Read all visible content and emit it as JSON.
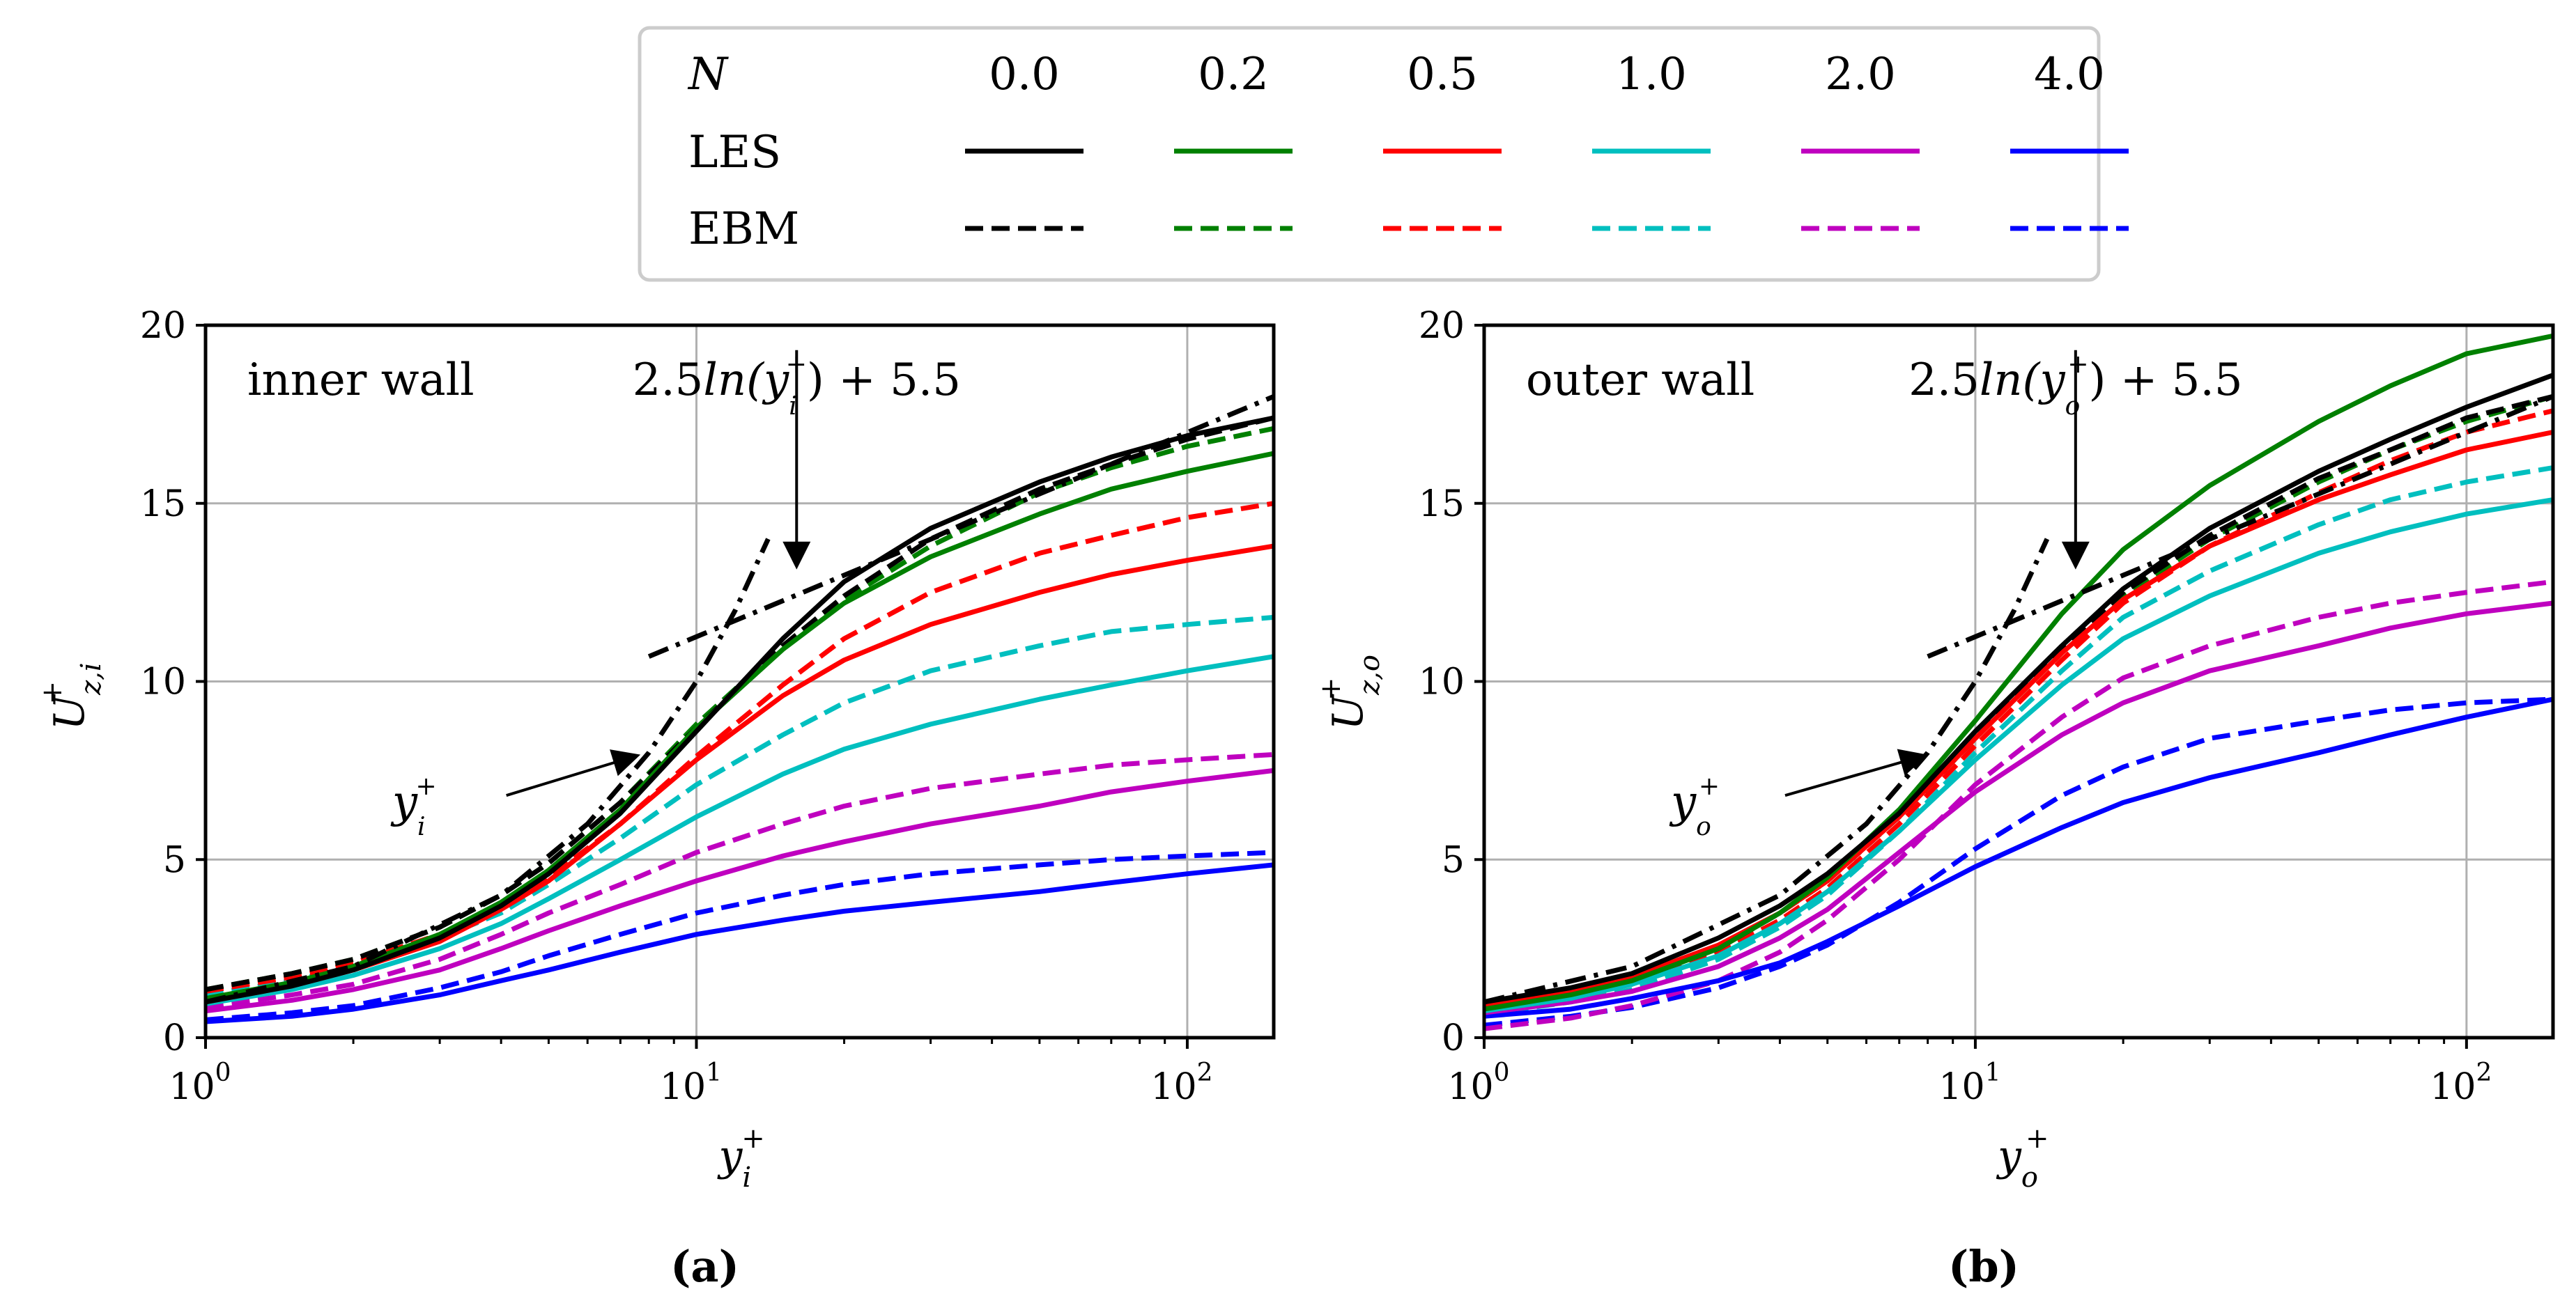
{
  "legend": {
    "param_label": "N",
    "les_label": "LES",
    "ebm_label": "EBM",
    "entries": [
      {
        "n": "0.0",
        "color": "#000000"
      },
      {
        "n": "0.2",
        "color": "#008000"
      },
      {
        "n": "0.5",
        "color": "#ff0000"
      },
      {
        "n": "1.0",
        "color": "#00bfbf"
      },
      {
        "n": "2.0",
        "color": "#bf00bf"
      },
      {
        "n": "4.0",
        "color": "#0000ff"
      }
    ]
  },
  "chart_data": [
    {
      "type": "line",
      "panel_label": "(a)",
      "annotation": "inner wall",
      "log_law_text": "2.5ln(y_i^+) + 5.5",
      "log_law_label": {
        "main": "2.5",
        "ln": "ln",
        "open": "(y",
        "sub": "i",
        "close": ") + 5.5"
      },
      "viscous_label": {
        "base": "y",
        "sub": "i"
      },
      "xlabel": {
        "base": "y",
        "sub": "i"
      },
      "ylabel": {
        "base": "U",
        "sub": "z,i"
      },
      "xscale": "log",
      "xlim": [
        1,
        150
      ],
      "ylim": [
        0,
        20
      ],
      "grid": true,
      "x_ticks": [
        {
          "base": "10",
          "exp": "0",
          "value": 1
        },
        {
          "base": "10",
          "exp": "1",
          "value": 10
        },
        {
          "base": "10",
          "exp": "2",
          "value": 100
        }
      ],
      "y_ticks": [
        "0",
        "5",
        "10",
        "15",
        "20"
      ],
      "x": [
        1,
        1.5,
        2,
        3,
        4,
        5,
        7,
        10,
        15,
        20,
        30,
        50,
        70,
        100,
        150
      ],
      "series": [
        {
          "name": "LES N=0.0",
          "style": "solid",
          "color": "#000000",
          "values": [
            1.0,
            1.45,
            1.9,
            2.8,
            3.7,
            4.6,
            6.3,
            8.6,
            11.2,
            12.8,
            14.3,
            15.6,
            16.3,
            16.9,
            17.4
          ]
        },
        {
          "name": "LES N=0.2",
          "style": "solid",
          "color": "#008000",
          "values": [
            1.1,
            1.55,
            2.0,
            2.9,
            3.8,
            4.7,
            6.4,
            8.7,
            10.9,
            12.2,
            13.5,
            14.7,
            15.4,
            15.9,
            16.4
          ]
        },
        {
          "name": "LES N=0.5",
          "style": "solid",
          "color": "#ff0000",
          "values": [
            1.0,
            1.45,
            1.9,
            2.7,
            3.6,
            4.4,
            6.0,
            7.8,
            9.6,
            10.6,
            11.6,
            12.5,
            13.0,
            13.4,
            13.8
          ]
        },
        {
          "name": "LES N=1.0",
          "style": "solid",
          "color": "#00bfbf",
          "values": [
            0.95,
            1.35,
            1.75,
            2.5,
            3.2,
            3.9,
            5.0,
            6.2,
            7.4,
            8.1,
            8.8,
            9.5,
            9.9,
            10.3,
            10.7
          ]
        },
        {
          "name": "LES N=2.0",
          "style": "solid",
          "color": "#bf00bf",
          "values": [
            0.75,
            1.05,
            1.35,
            1.9,
            2.5,
            3.0,
            3.7,
            4.4,
            5.1,
            5.5,
            6.0,
            6.5,
            6.9,
            7.2,
            7.5
          ]
        },
        {
          "name": "LES N=4.0",
          "style": "solid",
          "color": "#0000ff",
          "values": [
            0.45,
            0.6,
            0.8,
            1.2,
            1.6,
            1.9,
            2.4,
            2.9,
            3.3,
            3.55,
            3.8,
            4.1,
            4.35,
            4.6,
            4.85
          ]
        },
        {
          "name": "EBM N=0.0",
          "style": "dashed",
          "color": "#000000",
          "values": [
            1.35,
            1.8,
            2.2,
            3.1,
            4.0,
            4.9,
            6.6,
            8.7,
            11.0,
            12.4,
            14.0,
            15.4,
            16.1,
            16.8,
            17.4
          ]
        },
        {
          "name": "EBM N=0.2",
          "style": "dashed",
          "color": "#008000",
          "values": [
            1.35,
            1.8,
            2.2,
            3.1,
            4.0,
            4.9,
            6.6,
            8.8,
            11.0,
            12.3,
            13.8,
            15.3,
            16.0,
            16.6,
            17.1
          ]
        },
        {
          "name": "EBM N=0.5",
          "style": "dashed",
          "color": "#ff0000",
          "values": [
            1.3,
            1.7,
            2.1,
            2.9,
            3.7,
            4.5,
            6.0,
            7.9,
            9.9,
            11.2,
            12.5,
            13.6,
            14.1,
            14.6,
            15.0
          ]
        },
        {
          "name": "EBM N=1.0",
          "style": "dashed",
          "color": "#00bfbf",
          "values": [
            1.2,
            1.6,
            2.0,
            2.8,
            3.5,
            4.3,
            5.6,
            7.1,
            8.5,
            9.4,
            10.3,
            11.0,
            11.4,
            11.6,
            11.8
          ]
        },
        {
          "name": "EBM N=2.0",
          "style": "dashed",
          "color": "#bf00bf",
          "values": [
            0.85,
            1.2,
            1.5,
            2.2,
            2.9,
            3.5,
            4.3,
            5.2,
            6.0,
            6.5,
            7.0,
            7.4,
            7.65,
            7.8,
            7.95
          ]
        },
        {
          "name": "EBM N=4.0",
          "style": "dashed",
          "color": "#0000ff",
          "values": [
            0.5,
            0.7,
            0.9,
            1.4,
            1.85,
            2.3,
            2.9,
            3.5,
            4.0,
            4.3,
            4.6,
            4.85,
            5.0,
            5.1,
            5.2
          ]
        }
      ],
      "reference_lines": [
        {
          "name": "viscous sublayer U+=y+",
          "style": "dashdot",
          "x": [
            1,
            2,
            4,
            6,
            8,
            10,
            12,
            14
          ],
          "values": [
            1,
            2,
            4,
            6,
            8,
            10,
            12,
            14
          ]
        },
        {
          "name": "log law 2.5ln(y+)+5.5",
          "style": "dashdot",
          "x": [
            8,
            150
          ],
          "values": [
            10.7,
            18.0
          ]
        }
      ],
      "arrows": [
        {
          "label": "log law",
          "from": [
            16,
            19.3
          ],
          "to": [
            16,
            13.3
          ]
        },
        {
          "label": "viscous",
          "from": [
            4.1,
            6.8
          ],
          "to": [
            7.5,
            7.9
          ]
        }
      ]
    },
    {
      "type": "line",
      "panel_label": "(b)",
      "annotation": "outer wall",
      "log_law_text": "2.5ln(y_o^+) + 5.5",
      "log_law_label": {
        "main": "2.5",
        "ln": "ln",
        "open": "(y",
        "sub": "o",
        "close": ") + 5.5"
      },
      "viscous_label": {
        "base": "y",
        "sub": "o"
      },
      "xlabel": {
        "base": "y",
        "sub": "o"
      },
      "ylabel": {
        "base": "U",
        "sub": "z,o"
      },
      "xscale": "log",
      "xlim": [
        1,
        150
      ],
      "ylim": [
        0,
        20
      ],
      "grid": true,
      "x_ticks": [
        {
          "base": "10",
          "exp": "0",
          "value": 1
        },
        {
          "base": "10",
          "exp": "1",
          "value": 10
        },
        {
          "base": "10",
          "exp": "2",
          "value": 100
        }
      ],
      "y_ticks": [
        "0",
        "5",
        "10",
        "15",
        "20"
      ],
      "x": [
        1,
        1.5,
        2,
        3,
        4,
        5,
        7,
        10,
        15,
        20,
        30,
        50,
        70,
        100,
        150
      ],
      "series": [
        {
          "name": "LES N=0.0",
          "style": "solid",
          "color": "#000000",
          "values": [
            1.0,
            1.4,
            1.8,
            2.8,
            3.7,
            4.6,
            6.3,
            8.6,
            11.0,
            12.6,
            14.3,
            15.9,
            16.8,
            17.7,
            18.6
          ]
        },
        {
          "name": "LES N=0.2",
          "style": "solid",
          "color": "#008000",
          "values": [
            0.8,
            1.2,
            1.6,
            2.5,
            3.5,
            4.5,
            6.4,
            8.9,
            11.9,
            13.7,
            15.5,
            17.3,
            18.3,
            19.2,
            19.7
          ]
        },
        {
          "name": "LES N=0.5",
          "style": "solid",
          "color": "#ff0000",
          "values": [
            0.9,
            1.3,
            1.7,
            2.6,
            3.5,
            4.4,
            6.2,
            8.4,
            10.8,
            12.3,
            13.8,
            15.1,
            15.8,
            16.5,
            17.0
          ]
        },
        {
          "name": "LES N=1.0",
          "style": "solid",
          "color": "#00bfbf",
          "values": [
            0.75,
            1.1,
            1.5,
            2.3,
            3.2,
            4.1,
            5.8,
            7.8,
            9.9,
            11.2,
            12.4,
            13.6,
            14.2,
            14.7,
            15.1
          ]
        },
        {
          "name": "LES N=2.0",
          "style": "solid",
          "color": "#bf00bf",
          "values": [
            0.7,
            1.0,
            1.3,
            2.0,
            2.8,
            3.6,
            5.2,
            6.9,
            8.5,
            9.4,
            10.3,
            11.0,
            11.5,
            11.9,
            12.2
          ]
        },
        {
          "name": "LES N=4.0",
          "style": "solid",
          "color": "#0000ff",
          "values": [
            0.6,
            0.8,
            1.1,
            1.6,
            2.1,
            2.7,
            3.7,
            4.8,
            5.9,
            6.6,
            7.3,
            8.0,
            8.5,
            9.0,
            9.5
          ]
        },
        {
          "name": "EBM N=0.0",
          "style": "dashed",
          "color": "#000000",
          "values": [
            0.8,
            1.2,
            1.6,
            2.5,
            3.5,
            4.4,
            6.2,
            8.4,
            10.9,
            12.5,
            14.1,
            15.7,
            16.5,
            17.4,
            18.0
          ]
        },
        {
          "name": "EBM N=0.2",
          "style": "dashed",
          "color": "#008000",
          "values": [
            0.8,
            1.2,
            1.6,
            2.5,
            3.5,
            4.4,
            6.2,
            8.4,
            10.8,
            12.4,
            14.0,
            15.6,
            16.5,
            17.3,
            18.0
          ]
        },
        {
          "name": "EBM N=0.5",
          "style": "dashed",
          "color": "#ff0000",
          "values": [
            0.75,
            1.1,
            1.5,
            2.4,
            3.3,
            4.2,
            6.0,
            8.2,
            10.6,
            12.2,
            13.8,
            15.3,
            16.2,
            17.0,
            17.6
          ]
        },
        {
          "name": "EBM N=1.0",
          "style": "dashed",
          "color": "#00bfbf",
          "values": [
            0.65,
            1.0,
            1.35,
            2.2,
            3.1,
            4.0,
            5.8,
            8.0,
            10.3,
            11.8,
            13.1,
            14.4,
            15.1,
            15.6,
            16.0
          ]
        },
        {
          "name": "EBM N=2.0",
          "style": "dashed",
          "color": "#bf00bf",
          "values": [
            0.25,
            0.55,
            0.9,
            1.6,
            2.4,
            3.3,
            5.0,
            7.1,
            9.0,
            10.1,
            11.0,
            11.8,
            12.2,
            12.5,
            12.8
          ]
        },
        {
          "name": "EBM N=4.0",
          "style": "dashed",
          "color": "#0000ff",
          "values": [
            0.35,
            0.6,
            0.85,
            1.4,
            2.0,
            2.6,
            3.8,
            5.3,
            6.8,
            7.6,
            8.4,
            8.9,
            9.2,
            9.4,
            9.5
          ]
        }
      ],
      "reference_lines": [
        {
          "name": "viscous sublayer U+=y+",
          "style": "dashdot",
          "x": [
            1,
            2,
            4,
            6,
            8,
            10,
            12,
            14
          ],
          "values": [
            1,
            2,
            4,
            6,
            8,
            10,
            12,
            14
          ]
        },
        {
          "name": "log law 2.5ln(y+)+5.5",
          "style": "dashdot",
          "x": [
            8,
            150
          ],
          "values": [
            10.7,
            18.0
          ]
        }
      ],
      "arrows": [
        {
          "label": "log law",
          "from": [
            16,
            19.3
          ],
          "to": [
            16,
            13.3
          ]
        },
        {
          "label": "viscous",
          "from": [
            4.1,
            6.8
          ],
          "to": [
            7.8,
            7.9
          ]
        }
      ]
    }
  ]
}
